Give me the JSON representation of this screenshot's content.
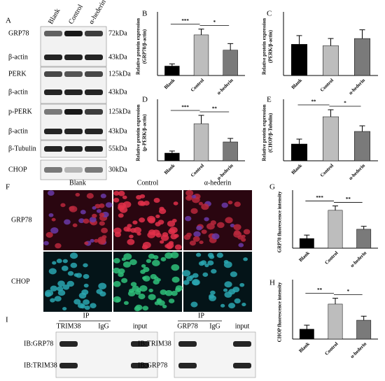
{
  "panel_letters": [
    "A",
    "B",
    "C",
    "D",
    "E",
    "F",
    "G",
    "H",
    "I"
  ],
  "blot": {
    "columns": [
      "Blank",
      "Control",
      "α-hederin"
    ],
    "rows": [
      {
        "label": "GRP78",
        "size": "72kDa"
      },
      {
        "label": "β-actin",
        "size": "43kDa"
      },
      {
        "label": "PERK",
        "size": "125kDa"
      },
      {
        "label": "β-actin",
        "size": "43kDa"
      },
      {
        "label": "p-PERK",
        "size": "125kDa"
      },
      {
        "label": "β-actin",
        "size": "43kDa"
      },
      {
        "label": "β-Tubulin",
        "size": "55kDa"
      },
      {
        "label": "CHOP",
        "size": "30kDa"
      }
    ]
  },
  "chart_data": [
    {
      "type": "bar",
      "ylabel": [
        "Relative protein expression",
        "(GRP78/β-actin)"
      ],
      "categories": [
        "Blank",
        "Control",
        "α-hederin"
      ],
      "values": [
        0.13,
        0.56,
        0.35
      ],
      "errors": [
        0.03,
        0.08,
        0.09
      ],
      "colors": [
        "#000000",
        "#bdbdbd",
        "#7a7a7a"
      ],
      "ylim": [
        0,
        0.8
      ],
      "annotations": [
        "***",
        "*"
      ]
    },
    {
      "type": "bar",
      "ylabel": [
        "Relative protein expression",
        "(PERK/β-actin)"
      ],
      "categories": [
        "Blank",
        "Control",
        "α-hederin"
      ],
      "values": [
        0.43,
        0.41,
        0.51
      ],
      "errors": [
        0.12,
        0.1,
        0.12
      ],
      "colors": [
        "#000000",
        "#bdbdbd",
        "#7a7a7a"
      ],
      "ylim": [
        0,
        0.8
      ],
      "annotations": []
    },
    {
      "type": "bar",
      "ylabel": [
        "Relative protein expression",
        "(p-PERK/β-actin)"
      ],
      "categories": [
        "Blank",
        "Control",
        "α-hederin"
      ],
      "values": [
        0.11,
        0.53,
        0.27
      ],
      "errors": [
        0.03,
        0.12,
        0.05
      ],
      "colors": [
        "#000000",
        "#bdbdbd",
        "#7a7a7a"
      ],
      "ylim": [
        0,
        0.8
      ],
      "annotations": [
        "***",
        "**"
      ]
    },
    {
      "type": "bar",
      "ylabel": [
        "Relative protein expression",
        "(CHOP/β-Tubulin)"
      ],
      "categories": [
        "Blank",
        "Control",
        "α-hederin"
      ],
      "values": [
        0.24,
        0.63,
        0.42
      ],
      "errors": [
        0.07,
        0.1,
        0.08
      ],
      "colors": [
        "#000000",
        "#bdbdbd",
        "#7a7a7a"
      ],
      "ylim": [
        0,
        0.8
      ],
      "annotations": [
        "**",
        "*"
      ]
    },
    {
      "type": "bar",
      "ylabel": [
        "GRP78 fluorescence intensity"
      ],
      "categories": [
        "Blank",
        "Control",
        "α-hederin"
      ],
      "values": [
        0.33,
        1.3,
        0.65
      ],
      "errors": [
        0.12,
        0.15,
        0.1
      ],
      "colors": [
        "#000000",
        "#bdbdbd",
        "#7a7a7a"
      ],
      "ylim": [
        0,
        1.8
      ],
      "annotations": [
        "***",
        "**"
      ]
    },
    {
      "type": "bar",
      "ylabel": [
        "CHOP fluorescence intensity"
      ],
      "categories": [
        "Blank",
        "Control",
        "α-hederin"
      ],
      "values": [
        0.22,
        0.78,
        0.42
      ],
      "errors": [
        0.09,
        0.13,
        0.09
      ],
      "colors": [
        "#000000",
        "#bdbdbd",
        "#7a7a7a"
      ],
      "ylim": [
        0,
        1.2
      ],
      "annotations": [
        "**",
        "*"
      ]
    }
  ],
  "microscopy": {
    "columns": [
      "Blank",
      "Control",
      "α-hederin"
    ],
    "rows": [
      "GRP78",
      "CHOP"
    ]
  },
  "ip": [
    {
      "header": "IP",
      "lanes": [
        "TRIM38",
        "IgG",
        "input"
      ],
      "rows": [
        "IB:GRP78",
        "IB:TRIM38"
      ]
    },
    {
      "header": "IP",
      "lanes": [
        "GRP78",
        "IgG",
        "input"
      ],
      "rows": [
        "IB:TRIM38",
        "IB:GRP78"
      ]
    }
  ]
}
